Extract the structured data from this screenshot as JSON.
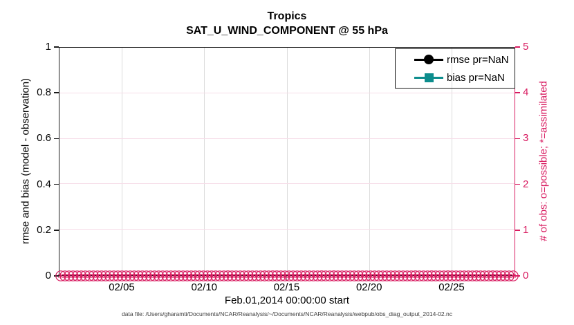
{
  "title": {
    "line1": "Tropics",
    "line2": "SAT_U_WIND_COMPONENT @ 55 hPa"
  },
  "axes": {
    "y_left": {
      "label": "rmse and bias (model - observation)",
      "ticks": [
        "0",
        "0.2",
        "0.4",
        "0.6",
        "0.8",
        "1"
      ]
    },
    "y_right": {
      "label": "# of obs: o=possible; *=assimilated",
      "ticks": [
        "0",
        "1",
        "2",
        "3",
        "4",
        "5"
      ]
    },
    "x": {
      "ticks": [
        "02/05",
        "02/10",
        "02/15",
        "02/20",
        "02/25"
      ],
      "label": "Feb.01,2014 00:00:00 start"
    }
  },
  "legend": [
    {
      "label": "rmse pr=NaN",
      "color": "#000000",
      "marker": "circle"
    },
    {
      "label": "bias pr=NaN",
      "color": "#0d8d8d",
      "marker": "square"
    }
  ],
  "caption": "data file: /Users/gharamti/Documents/NCAR/Reanalysis/~/Documents/NCAR/Reanalysis/webpub/obs_diag_output_2014-02.nc",
  "colors": {
    "right_axis_pink": "#d81b60",
    "grid_vertical": "#dcdcdc",
    "grid_horizontal_pink": "#f6dde8",
    "axis_black": "#1a1a1a",
    "bias_teal": "#0d8d8d"
  },
  "chart_data": {
    "type": "line",
    "title": "Tropics",
    "subtitle": "SAT_U_WIND_COMPONENT @ 55 hPa",
    "xlabel": "Feb.01,2014 00:00:00 start",
    "x_tick_labels": [
      "02/05",
      "02/10",
      "02/15",
      "02/20",
      "02/25"
    ],
    "y_left": {
      "label": "rmse and bias (model - observation)",
      "range": [
        0,
        1
      ],
      "tick_step": 0.2
    },
    "y_right": {
      "label": "# of obs: o=possible; *=assimilated",
      "range": [
        0,
        5
      ],
      "tick_step": 1
    },
    "grid": true,
    "legend_position": "top-right",
    "series": [
      {
        "name": "rmse pr=NaN",
        "axis": "left",
        "marker": "filled-circle",
        "color": "#000000",
        "values_constant": null,
        "note": "all values NaN - no curve drawn"
      },
      {
        "name": "bias pr=NaN",
        "axis": "left",
        "marker": "filled-square",
        "color": "#0d8d8d",
        "values_constant": null,
        "note": "all values NaN - no curve drawn"
      },
      {
        "name": "obs possible (o markers)",
        "axis": "right",
        "marker": "open-circle",
        "color": "#d81b60",
        "n_points": 112,
        "values_constant": 0
      },
      {
        "name": "obs assimilated (* markers)",
        "axis": "right",
        "marker": "asterisk",
        "color": "#d81b60",
        "n_points": 112,
        "values_constant": 0
      }
    ]
  }
}
